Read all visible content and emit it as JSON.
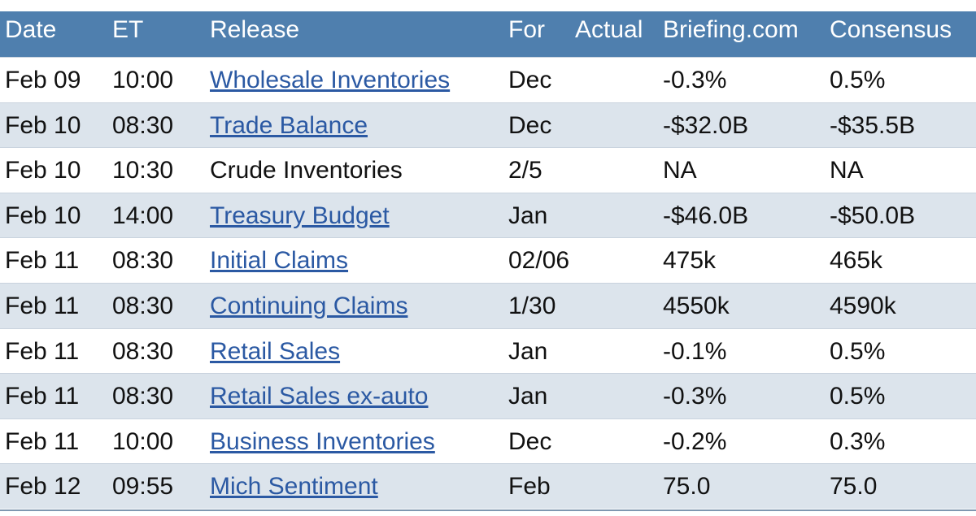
{
  "table": {
    "header": [
      "Date",
      "ET",
      "Release",
      "For",
      "Actual",
      "Briefing.com",
      "Consensus"
    ],
    "rows": [
      {
        "date": "Feb 09",
        "et": "10:00",
        "release": "Wholesale Inventories",
        "link": true,
        "for": "Dec",
        "briefing": "-0.3%",
        "consensus": "0.5%"
      },
      {
        "date": "Feb 10",
        "et": "08:30",
        "release": "Trade Balance",
        "link": true,
        "for": "Dec",
        "briefing": "-$32.0B",
        "consensus": "-$35.5B"
      },
      {
        "date": "Feb 10",
        "et": "10:30",
        "release": "Crude Inventories",
        "link": false,
        "for": "2/5",
        "briefing": "NA",
        "consensus": "NA"
      },
      {
        "date": "Feb 10",
        "et": "14:00",
        "release": "Treasury Budget",
        "link": true,
        "for": "Jan",
        "briefing": "-$46.0B",
        "consensus": "-$50.0B"
      },
      {
        "date": "Feb 11",
        "et": "08:30",
        "release": "Initial Claims",
        "link": true,
        "for": "02/06",
        "briefing": "475k",
        "consensus": "465k"
      },
      {
        "date": "Feb 11",
        "et": "08:30",
        "release": "Continuing Claims",
        "link": true,
        "for": "1/30",
        "briefing": "4550k",
        "consensus": "4590k"
      },
      {
        "date": "Feb 11",
        "et": "08:30",
        "release": "Retail Sales",
        "link": true,
        "for": "Jan",
        "briefing": "-0.1%",
        "consensus": "0.5%"
      },
      {
        "date": "Feb 11",
        "et": "08:30",
        "release": "Retail Sales ex-auto",
        "link": true,
        "for": "Jan",
        "briefing": "-0.3%",
        "consensus": "0.5%"
      },
      {
        "date": "Feb 11",
        "et": "10:00",
        "release": "Business Inventories",
        "link": true,
        "for": "Dec",
        "briefing": "-0.2%",
        "consensus": "0.3%"
      },
      {
        "date": "Feb 12",
        "et": "09:55",
        "release": "Mich Sentiment",
        "link": true,
        "for": "Feb",
        "briefing": "75.0",
        "consensus": "75.0"
      }
    ]
  }
}
